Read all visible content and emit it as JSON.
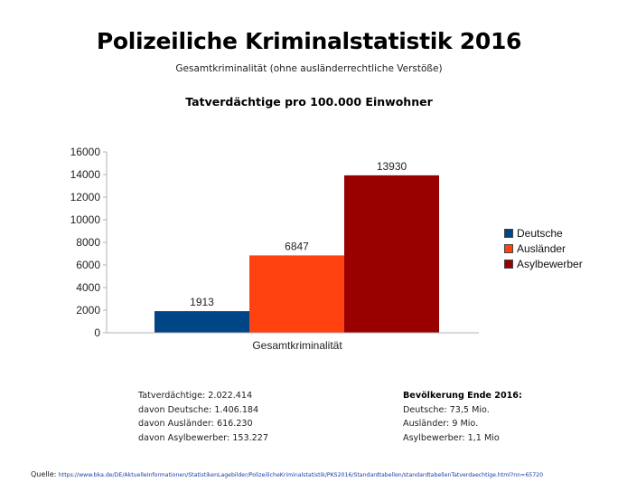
{
  "header": {
    "title": "Polizeiliche Kriminalstatistik 2016",
    "subtitle": "Gesamtkriminalität (ohne ausländerrechtliche Verstöße)"
  },
  "chart_data": {
    "type": "bar",
    "title": "Tatverdächtige pro 100.000  Einwohner",
    "categories": [
      "Gesamtkriminalität"
    ],
    "series": [
      {
        "name": "Deutsche",
        "values": [
          1913
        ],
        "color": "#004586"
      },
      {
        "name": "Ausländer",
        "values": [
          6847
        ],
        "color": "#ff420e"
      },
      {
        "name": "Asylbewerber",
        "values": [
          13930
        ],
        "color": "#990000"
      }
    ],
    "xlabel": "",
    "ylabel": "",
    "ylim": [
      0,
      16000
    ],
    "yticks": [
      0,
      2000,
      4000,
      6000,
      8000,
      10000,
      12000,
      14000,
      16000
    ],
    "ytick_labels": [
      "0",
      "2000",
      "4000",
      "6000",
      "8000",
      "10000",
      "12000",
      "14000",
      "16000"
    ],
    "data_labels": [
      "1913",
      "6847",
      "13930"
    ],
    "grid": false,
    "legend_position": "right"
  },
  "stats_left": {
    "lines": [
      "Tatverdächtige: 2.022.414",
      "davon Deutsche: 1.406.184",
      "davon Ausländer: 616.230",
      "davon Asylbewerber: 153.227"
    ]
  },
  "stats_right": {
    "heading": "Bevölkerung Ende 2016:",
    "lines": [
      "Deutsche: 73,5 Mio.",
      "Ausländer: 9 Mio.",
      "Asylbewerber: 1,1 Mio"
    ]
  },
  "source": {
    "label": "Quelle:",
    "url": "https://www.bka.de/DE/AktuelleInformationen/StatistikenLagebilder/PolizeilicheKriminalstatistik/PKS2016/Standardtabellen/standardtabellenTatverdaechtige.html?nn=65720"
  }
}
